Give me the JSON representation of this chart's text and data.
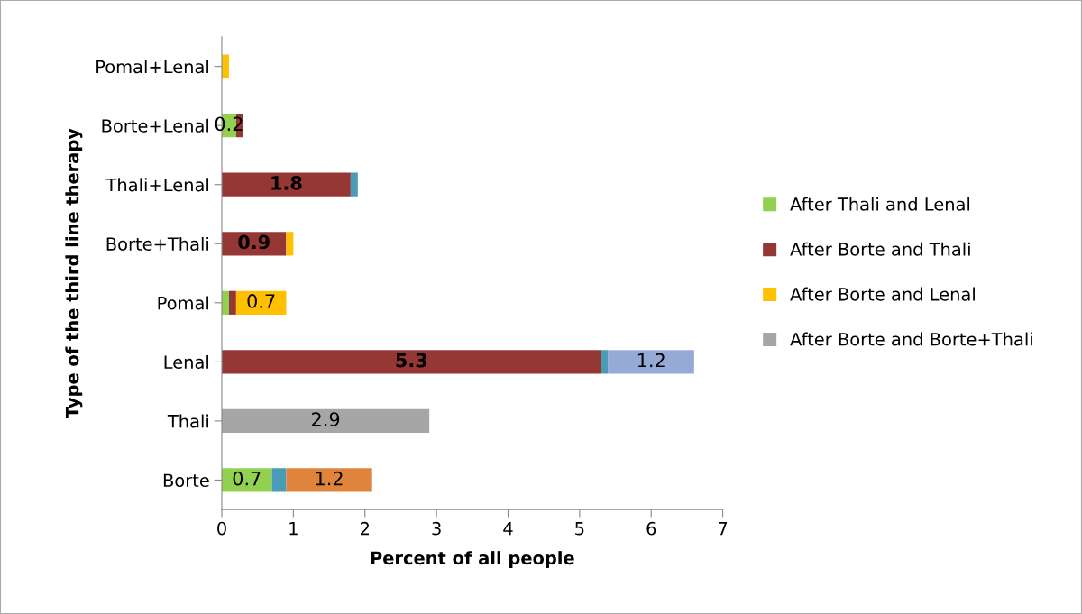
{
  "chart_data": {
    "type": "bar",
    "orientation": "horizontal",
    "stacked": true,
    "categories": [
      "Pomal+Lenal",
      "Borte+Lenal",
      "Thali+Lenal",
      "Borte+Thali",
      "Pomal",
      "Lenal",
      "Thali",
      "Borte"
    ],
    "xlabel": "Percent of all people",
    "ylabel": "Type of the third line therapy",
    "xlim": [
      0,
      7
    ],
    "xticks": [
      0,
      1,
      2,
      3,
      4,
      5,
      6,
      7
    ],
    "grid": false,
    "legend": "right",
    "series": [
      {
        "name": "After Thali and Lenal",
        "color": "#92d050",
        "values": [
          null,
          0.2,
          null,
          null,
          0.1,
          null,
          null,
          0.7
        ],
        "value_labels": [
          null,
          "0.2",
          null,
          null,
          null,
          null,
          null,
          "0.7"
        ]
      },
      {
        "name": "After Borte and Thali",
        "color": "#953735",
        "values": [
          null,
          0.1,
          1.8,
          0.9,
          0.1,
          5.3,
          null,
          null
        ],
        "value_labels": [
          null,
          null,
          "1.8",
          "0.9",
          null,
          "5.3",
          null,
          null
        ]
      },
      {
        "name": "After Borte and Lenal",
        "color": "#ffc000",
        "values": [
          0.1,
          null,
          null,
          0.1,
          0.7,
          null,
          null,
          null
        ],
        "value_labels": [
          null,
          null,
          null,
          null,
          "0.7",
          null,
          null,
          null
        ]
      },
      {
        "name": "After Borte and Borte+Thali",
        "color": "#a6a6a6",
        "values": [
          null,
          null,
          null,
          null,
          null,
          null,
          2.9,
          null
        ],
        "value_labels": [
          null,
          null,
          null,
          null,
          null,
          null,
          "2.9",
          null
        ]
      },
      {
        "color": "#4a9bb5",
        "values": [
          null,
          null,
          0.1,
          null,
          null,
          0.1,
          null,
          0.2
        ]
      },
      {
        "color": "#95abd6",
        "values": [
          null,
          null,
          null,
          null,
          null,
          1.2,
          null,
          null
        ],
        "value_labels": [
          null,
          null,
          null,
          null,
          null,
          "1.2",
          null,
          null
        ]
      },
      {
        "color": "#e0843c",
        "values": [
          null,
          null,
          null,
          null,
          null,
          null,
          null,
          1.2
        ],
        "value_labels": [
          null,
          null,
          null,
          null,
          null,
          null,
          null,
          "1.2"
        ]
      }
    ]
  }
}
